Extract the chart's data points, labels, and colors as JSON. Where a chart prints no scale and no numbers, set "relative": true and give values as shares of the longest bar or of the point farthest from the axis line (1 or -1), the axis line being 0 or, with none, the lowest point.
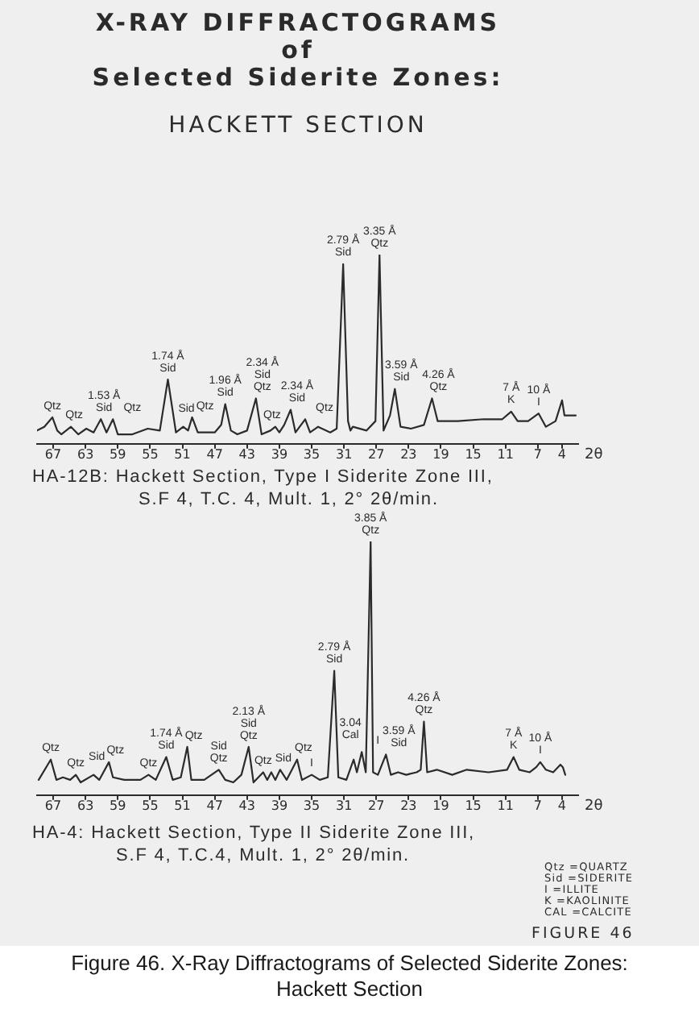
{
  "chart_data": [
    {
      "type": "line",
      "title": "X-RAY DIFFRACTOGRAMS\nof\nSelected Siderite Zones:",
      "subtitle": "HACKETT SECTION",
      "xlabel": "2θ",
      "relative": true,
      "color": "#2b2b2b",
      "xlim": [
        69,
        2
      ],
      "xticks": [
        67,
        63,
        59,
        55,
        51,
        47,
        43,
        39,
        35,
        31,
        27,
        23,
        19,
        15,
        11,
        7,
        4
      ],
      "x": [
        69.0,
        68.1,
        67.1,
        66.5,
        66.0,
        64.8,
        63.9,
        62.9,
        62.0,
        61.1,
        60.4,
        59.6,
        59.0,
        57.2,
        55.3,
        53.8,
        52.8,
        51.8,
        50.9,
        50.3,
        49.8,
        49.1,
        47.0,
        46.2,
        45.7,
        45.0,
        44.2,
        43.0,
        41.9,
        41.2,
        40.1,
        39.5,
        39.0,
        38.4,
        37.6,
        37.0,
        35.8,
        35.2,
        34.2,
        32.7,
        31.9,
        31.1,
        30.5,
        30.2,
        29.9,
        28.2,
        27.1,
        26.6,
        26.1,
        25.3,
        24.7,
        24.0,
        22.7,
        21.1,
        20.1,
        19.4,
        16.9,
        13.7,
        11.4,
        10.3,
        9.5,
        8.2,
        6.9,
        6.0,
        4.8,
        4.0,
        3.7,
        2.3
      ],
      "values": [
        0.07,
        0.09,
        0.14,
        0.07,
        0.05,
        0.09,
        0.05,
        0.08,
        0.06,
        0.13,
        0.06,
        0.13,
        0.05,
        0.05,
        0.08,
        0.07,
        0.34,
        0.06,
        0.09,
        0.07,
        0.14,
        0.06,
        0.06,
        0.1,
        0.21,
        0.07,
        0.05,
        0.07,
        0.24,
        0.05,
        0.07,
        0.09,
        0.06,
        0.1,
        0.18,
        0.06,
        0.13,
        0.06,
        0.09,
        0.06,
        0.08,
        0.95,
        0.12,
        0.07,
        0.09,
        0.07,
        0.12,
        1,
        0.07,
        0.15,
        0.29,
        0.09,
        0.08,
        0.1,
        0.24,
        0.12,
        0.12,
        0.13,
        0.13,
        0.17,
        0.12,
        0.12,
        0.16,
        0.09,
        0.12,
        0.23,
        0.15,
        0.15
      ],
      "annotations": [
        {
          "text": "Qtz",
          "x": 67.1,
          "y": 0.14
        },
        {
          "text": "Qtz",
          "x": 64.8,
          "y": 0.09
        },
        {
          "text": "1.53 Å\nSid",
          "x": 61.1,
          "y": 0.13
        },
        {
          "text": "Qtz",
          "x": 59.6,
          "y": 0.13
        },
        {
          "text": "1.74 Å\nSid",
          "x": 52.8,
          "y": 0.34
        },
        {
          "text": "Sid",
          "x": 50.9,
          "y": 0.09
        },
        {
          "text": "Qtz",
          "x": 49.8,
          "y": 0.14
        },
        {
          "text": "1.96 Å\nSid",
          "x": 45.7,
          "y": 0.21
        },
        {
          "text": "2.34 Å\nSid\nQtz",
          "x": 41.9,
          "y": 0.24
        },
        {
          "text": "Qtz",
          "x": 39.5,
          "y": 0.09
        },
        {
          "text": "2.34 Å\nSid",
          "x": 37.6,
          "y": 0.18
        },
        {
          "text": "Qtz",
          "x": 35.8,
          "y": 0.13
        },
        {
          "text": "2.79 Å\nSid",
          "x": 31.1,
          "y": 0.95
        },
        {
          "text": "3.35 Å\nQtz",
          "x": 26.6,
          "y": 1
        },
        {
          "text": "3.59 Å\nSid",
          "x": 24.7,
          "y": 0.29
        },
        {
          "text": "4.26 Å\nQtz",
          "x": 20.1,
          "y": 0.24
        },
        {
          "text": "7 Å\nK",
          "x": 10.3,
          "y": 0.17
        },
        {
          "text": "10 Å\nI",
          "x": 6.9,
          "y": 0.16
        },
        "HA-12B: Hackett Section, Type I Siderite Zone III,",
        "S.F 4, T.C. 4, Mult. 1, 2° 2θ/min."
      ]
    },
    {
      "type": "line",
      "xlabel": "2θ",
      "relative": true,
      "color": "#2b2b2b",
      "xlim": [
        69,
        2
      ],
      "xticks": [
        67,
        63,
        59,
        55,
        51,
        47,
        43,
        39,
        35,
        31,
        27,
        23,
        19,
        15,
        11,
        7,
        4
      ],
      "x": [
        68.8,
        67.3,
        66.6,
        65.8,
        64.9,
        64.2,
        63.6,
        62.0,
        61.3,
        60.1,
        59.6,
        58.2,
        56.2,
        55.2,
        54.3,
        53.0,
        52.2,
        51.2,
        50.4,
        49.9,
        48.3,
        46.5,
        45.7,
        44.7,
        43.7,
        42.8,
        42.2,
        41.0,
        40.5,
        40.0,
        39.5,
        38.9,
        38.1,
        36.8,
        36.2,
        35.0,
        34.0,
        33.0,
        32.2,
        31.7,
        30.7,
        29.8,
        29.4,
        28.8,
        28.3,
        27.7,
        27.4,
        26.8,
        25.8,
        25.2,
        24.3,
        23.3,
        22.0,
        21.5,
        21.1,
        20.7,
        19.5,
        17.6,
        15.8,
        13.1,
        10.8,
        10.0,
        9.3,
        8.0,
        7.2,
        6.7,
        6.0,
        5.1,
        4.2,
        3.9,
        3.6
      ],
      "values": [
        0.06,
        0.14,
        0.06,
        0.07,
        0.06,
        0.08,
        0.05,
        0.08,
        0.06,
        0.13,
        0.07,
        0.06,
        0.06,
        0.08,
        0.06,
        0.15,
        0.06,
        0.07,
        0.19,
        0.06,
        0.06,
        0.1,
        0.06,
        0.05,
        0.08,
        0.19,
        0.05,
        0.09,
        0.06,
        0.09,
        0.06,
        0.1,
        0.06,
        0.14,
        0.06,
        0.08,
        0.06,
        0.07,
        0.49,
        0.07,
        0.06,
        0.14,
        0.09,
        0.17,
        0.09,
        1,
        0.09,
        0.08,
        0.16,
        0.08,
        0.09,
        0.08,
        0.09,
        0.1,
        0.29,
        0.09,
        0.1,
        0.08,
        0.1,
        0.09,
        0.1,
        0.15,
        0.1,
        0.09,
        0.11,
        0.13,
        0.1,
        0.09,
        0.12,
        0.11,
        0.08
      ],
      "annotations": [
        {
          "text": "Qtz",
          "x": 67.3,
          "y": 0.14
        },
        {
          "text": "Qtz",
          "x": 64.2,
          "y": 0.08
        },
        {
          "text": "Sid",
          "x": 62.0,
          "y": 0.08
        },
        {
          "text": "Qtz",
          "x": 60.1,
          "y": 0.13
        },
        {
          "text": "Qtz",
          "x": 55.2,
          "y": 0.08
        },
        {
          "text": "1.74 Å\nSid",
          "x": 53.0,
          "y": 0.15
        },
        {
          "text": "Qtz",
          "x": 50.4,
          "y": 0.19
        },
        {
          "text": "Sid\nQtz",
          "x": 46.5,
          "y": 0.1
        },
        {
          "text": "2.13 Å\nSid\nQtz",
          "x": 42.8,
          "y": 0.19
        },
        {
          "text": "Qtz",
          "x": 41.0,
          "y": 0.09
        },
        {
          "text": "Sid",
          "x": 38.9,
          "y": 0.1
        },
        {
          "text": "Qtz",
          "x": 36.8,
          "y": 0.14
        },
        {
          "text": "I",
          "x": 35.0,
          "y": 0.08
        },
        {
          "text": "2.79 Å\nSid",
          "x": 32.2,
          "y": 0.49
        },
        {
          "text": "3.04\nCal",
          "x": 29.8,
          "y": 0.14
        },
        {
          "text": "I",
          "x": 28.8,
          "y": 0.17
        },
        {
          "text": "3.85 Å\nQtz",
          "x": 27.7,
          "y": 1
        },
        {
          "text": "3.59 Å\nSid",
          "x": 25.8,
          "y": 0.16
        },
        {
          "text": "4.26 Å\nQtz",
          "x": 21.1,
          "y": 0.29
        },
        {
          "text": "7 Å\nK",
          "x": 10.0,
          "y": 0.15
        },
        {
          "text": "10 Å\nI",
          "x": 6.7,
          "y": 0.13
        },
        "HA-4: Hackett Section, Type II Siderite Zone III,",
        "S.F 4, T.C.4, Mult. 1, 2° 2θ/min.",
        "Qtz =QUARTZ",
        "Sid =SIDERITE",
        "I =ILLITE",
        "K =KAOLINITE",
        "CAL =CALCITE",
        "FIGURE 46",
        "Figure 46. X-Ray Diffractograms of Selected Siderite Zones: Hackett Section"
      ]
    }
  ]
}
